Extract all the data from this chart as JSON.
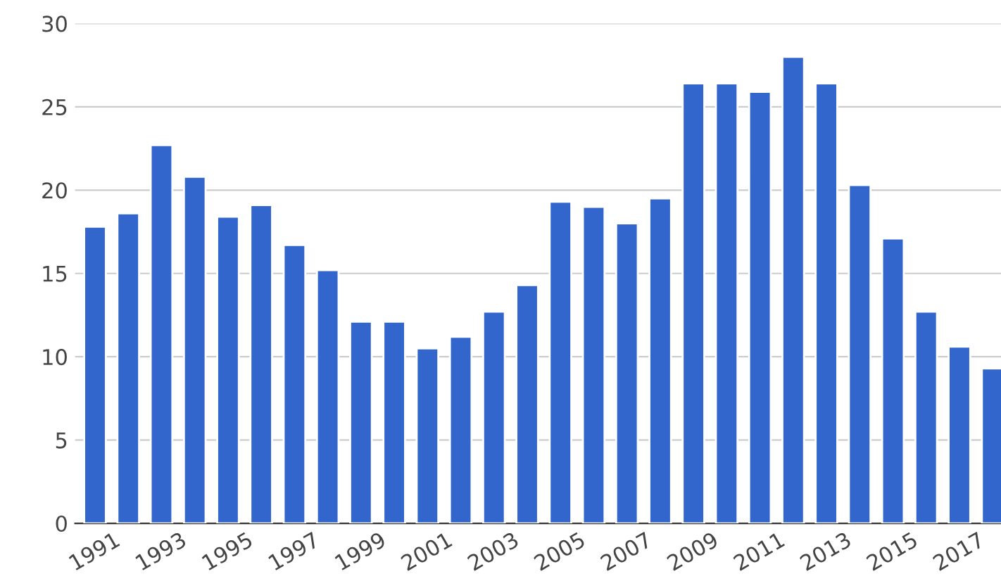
{
  "chart_data": {
    "type": "bar",
    "categories": [
      "1991",
      null,
      "1993",
      null,
      "1995",
      null,
      "1997",
      null,
      "1999",
      null,
      "2001",
      null,
      "2003",
      null,
      "2005",
      null,
      "2007",
      null,
      "2009",
      null,
      "2011",
      null,
      "2013",
      null,
      "2015",
      null,
      "2017",
      null
    ],
    "values": [
      17.8,
      18.6,
      22.7,
      20.8,
      18.4,
      19.1,
      16.7,
      15.2,
      12.1,
      12.1,
      10.5,
      11.2,
      12.7,
      14.3,
      19.3,
      19.0,
      18.0,
      19.5,
      26.4,
      26.4,
      25.9,
      28.0,
      26.4,
      20.3,
      17.1,
      12.7,
      10.6,
      9.3
    ],
    "color": "#3366cc",
    "ylim": [
      0,
      30
    ],
    "yticks": [
      0,
      5,
      10,
      15,
      20,
      25,
      30
    ],
    "grid": "y",
    "legend": false
  }
}
